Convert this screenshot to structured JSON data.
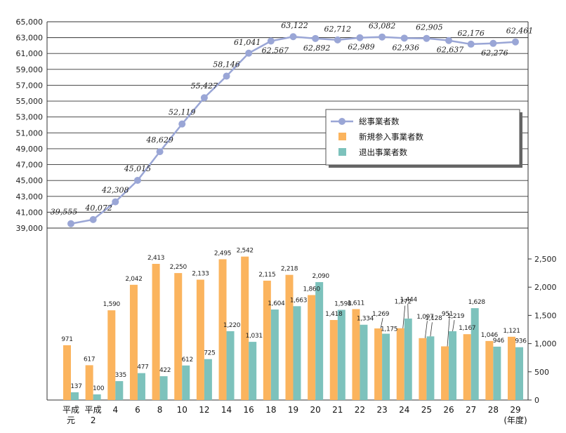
{
  "chart_data": [
    {
      "type": "line",
      "series": [
        {
          "name": "総事業者数",
          "values": [
            39555,
            40072,
            42308,
            45015,
            48629,
            52119,
            55427,
            58146,
            61041,
            62567,
            63122,
            62892,
            62712,
            62989,
            63082,
            62936,
            62905,
            62637,
            62176,
            62276,
            62461
          ]
        }
      ],
      "data_labels": [
        "39,555",
        "40,072",
        "42,308",
        "45,015",
        "48,629",
        "52,119",
        "55,427",
        "58,146",
        "61,041",
        "62,567",
        "63,122",
        "62,892",
        "62,712",
        "62,989",
        "63,082",
        "62,936",
        "62,905",
        "62,637",
        "62,176",
        "62,276",
        "62,461"
      ],
      "ylim": [
        39000,
        65000
      ],
      "y_ticks": [
        "39,000",
        "41,000",
        "43,000",
        "45,000",
        "47,000",
        "49,000",
        "51,000",
        "53,000",
        "55,000",
        "57,000",
        "59,000",
        "61,000",
        "63,000",
        "65,000"
      ],
      "grid": true
    },
    {
      "type": "bar",
      "series": [
        {
          "name": "新規参入事業者数",
          "color": "#fbb45e",
          "values": [
            971,
            617,
            1590,
            2042,
            2413,
            2250,
            2133,
            2495,
            2542,
            2115,
            2218,
            1860,
            1418,
            1611,
            1269,
            1272,
            1097,
            951,
            1167,
            1046,
            1121
          ]
        },
        {
          "name": "退出事業者数",
          "color": "#7dc2bc",
          "values": [
            137,
            100,
            335,
            477,
            422,
            612,
            725,
            1220,
            1031,
            1604,
            1663,
            2090,
            1598,
            1334,
            1175,
            1444,
            1128,
            1219,
            1628,
            946,
            936
          ]
        }
      ],
      "new_labels": [
        "971",
        "617",
        "1,590",
        "2,042",
        "2,413",
        "2,250",
        "2,133",
        "2,495",
        "2,542",
        "2,115",
        "2,218",
        "1,860",
        "1,418",
        "1,611",
        "1,269",
        "1,272",
        "1,097",
        "951",
        "1,167",
        "1,046",
        "1,121"
      ],
      "exit_labels": [
        "137",
        "100",
        "335",
        "477",
        "422",
        "612",
        "725",
        "1,220",
        "1,031",
        "1,604",
        "1,663",
        "2,090",
        "1,598",
        "1,334",
        "1,175",
        "1,444",
        "1,128",
        "1,219",
        "1,628",
        "946",
        "936"
      ],
      "ylim": [
        0,
        2500
      ],
      "y_ticks": [
        "0",
        "500",
        "1,000",
        "1,500",
        "2,000",
        "2,500"
      ],
      "y_axis_side": "right"
    }
  ],
  "x_categories": [
    [
      "平成",
      "元"
    ],
    [
      "平成",
      "2"
    ],
    [
      "4"
    ],
    [
      "6"
    ],
    [
      "8"
    ],
    [
      "10"
    ],
    [
      "12"
    ],
    [
      "14"
    ],
    [
      "16"
    ],
    [
      "18"
    ],
    [
      "19"
    ],
    [
      "20"
    ],
    [
      "21"
    ],
    [
      "22"
    ],
    [
      "23"
    ],
    [
      "24"
    ],
    [
      "25"
    ],
    [
      "26"
    ],
    [
      "27"
    ],
    [
      "28"
    ],
    [
      "29",
      "(年度)"
    ]
  ],
  "legend": {
    "position": "center-right",
    "items": [
      {
        "label": "総事業者数",
        "kind": "line-marker",
        "color": "#9aa6d6"
      },
      {
        "label": "新規参入事業者数",
        "kind": "box",
        "color": "#fbb45e"
      },
      {
        "label": "退出事業者数",
        "kind": "box",
        "color": "#7dc2bc"
      }
    ]
  }
}
